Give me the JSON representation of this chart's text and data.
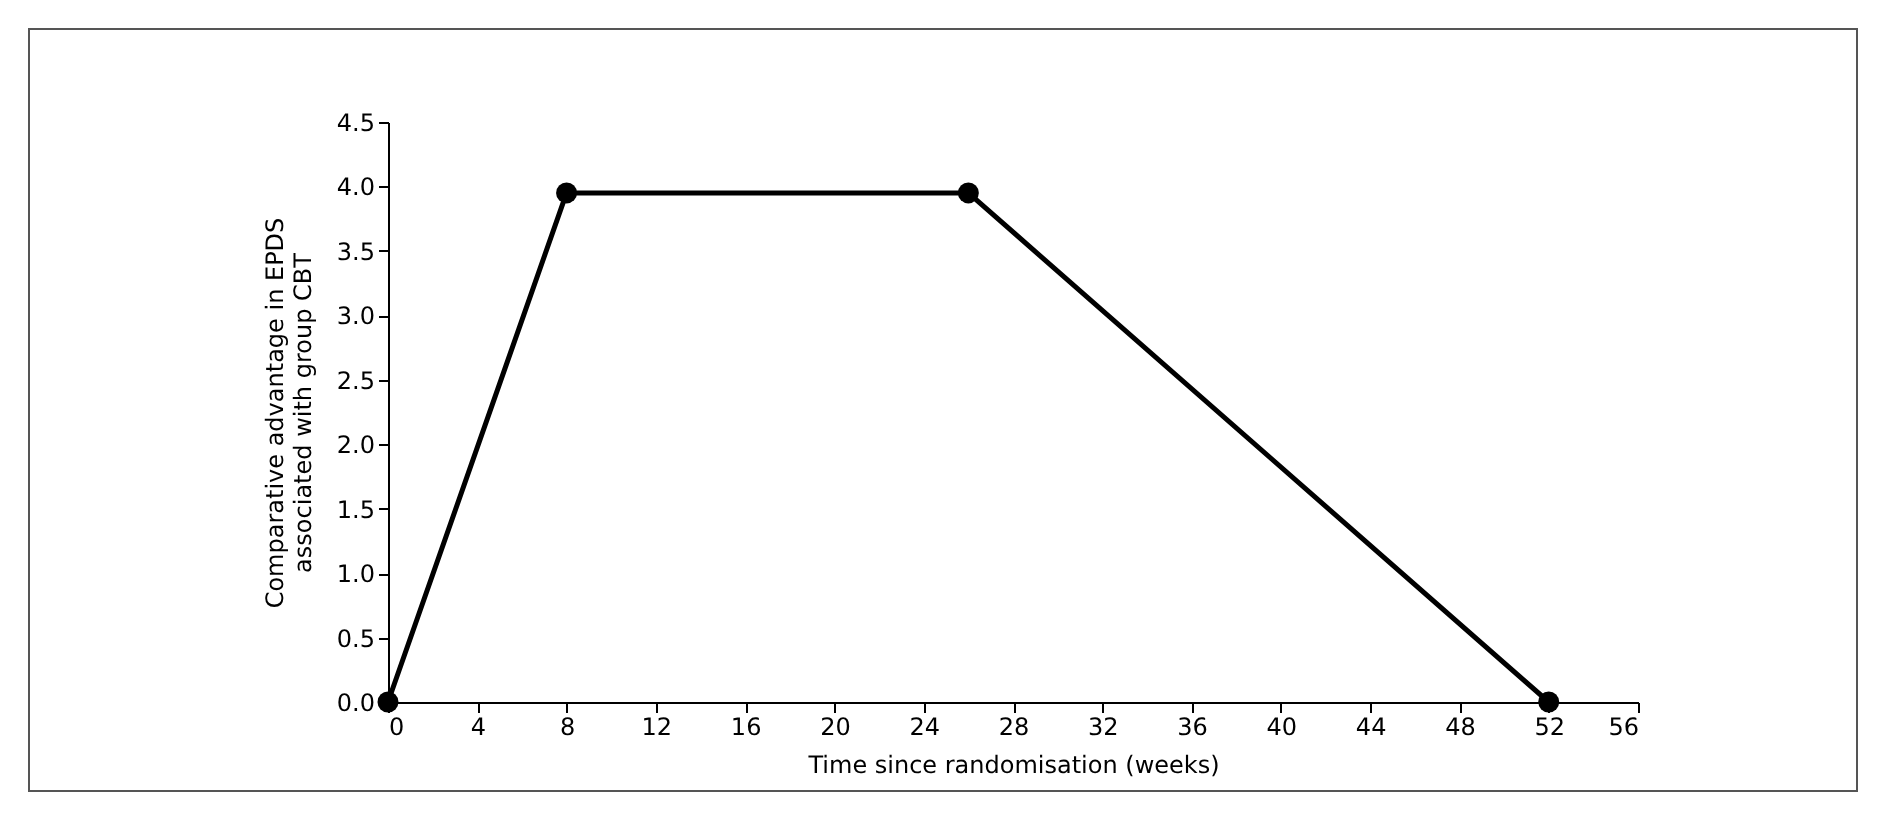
{
  "chart_data": {
    "type": "line",
    "xlabel": "Time since randomisation (weeks)",
    "ylabel": "Comparative advantage in EPDS\nassociated with group CBT",
    "x": [
      0,
      8,
      26,
      52
    ],
    "series": [
      {
        "color": "#000000",
        "values": [
          0,
          3.95,
          3.95,
          0
        ]
      }
    ],
    "xlim": [
      0,
      56
    ],
    "xticks": [
      0,
      4,
      8,
      12,
      16,
      20,
      24,
      28,
      32,
      36,
      40,
      44,
      48,
      52,
      56
    ],
    "ylim": [
      0,
      4.5
    ],
    "yticks": [
      {
        "value": 0,
        "label": "0.0"
      },
      {
        "value": 0.5,
        "label": "0.5"
      },
      {
        "value": 1,
        "label": "1.0"
      },
      {
        "value": 1.5,
        "label": "1.5"
      },
      {
        "value": 2,
        "label": "2.0"
      },
      {
        "value": 2.5,
        "label": "2.5"
      },
      {
        "value": 3,
        "label": "3.0"
      },
      {
        "value": 3.5,
        "label": "3.5"
      },
      {
        "value": 4,
        "label": "4.0"
      },
      {
        "value": 4.5,
        "label": "4.5"
      }
    ],
    "grid": false,
    "legend": false,
    "marker": "circle",
    "line_style": "solid"
  }
}
